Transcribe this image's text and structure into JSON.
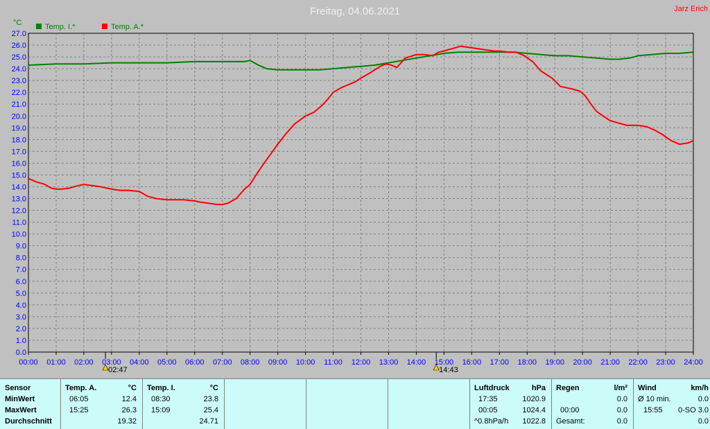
{
  "header": {
    "title": "Freitag, 04.06.2021",
    "author": "Jarz Erich"
  },
  "chart_data": {
    "type": "line",
    "ylabel": "°C",
    "ylim": [
      0.0,
      27.0
    ],
    "y_ticks": [
      "0.0",
      "1.0",
      "2.0",
      "3.0",
      "4.0",
      "5.0",
      "6.0",
      "7.0",
      "8.0",
      "9.0",
      "10.0",
      "11.0",
      "12.0",
      "13.0",
      "14.0",
      "15.0",
      "16.0",
      "17.0",
      "18.0",
      "19.0",
      "20.0",
      "21.0",
      "22.0",
      "23.0",
      "24.0",
      "25.0",
      "26.0",
      "27.0"
    ],
    "x_ticks": [
      "00:00",
      "01:00",
      "02:00",
      "03:00",
      "04:00",
      "05:00",
      "06:00",
      "07:00",
      "08:00",
      "09:00",
      "10:00",
      "11:00",
      "12:00",
      "13:00",
      "14:00",
      "15:00",
      "16:00",
      "17:00",
      "18:00",
      "19:00",
      "20:00",
      "21:00",
      "22:00",
      "23:00",
      "24:00"
    ],
    "xlim_hours": [
      0,
      24
    ],
    "grid": true,
    "legend_position": "top-left",
    "events": [
      {
        "hour": 2.78,
        "label": "02:47"
      },
      {
        "hour": 14.72,
        "label": "14:43"
      }
    ],
    "series": [
      {
        "name": "Temp. I.*",
        "color": "#008000",
        "x": [
          0,
          1,
          2,
          3,
          4,
          5,
          6,
          7,
          7.8,
          8.0,
          8.3,
          8.6,
          9,
          9.5,
          10,
          10.5,
          11,
          11.5,
          12,
          12.5,
          13,
          13.5,
          14,
          14.5,
          15,
          15.5,
          16,
          16.5,
          17,
          17.5,
          18,
          18.5,
          19,
          19.5,
          20,
          20.5,
          21,
          21.3,
          21.7,
          22,
          22.5,
          23,
          23.5,
          24
        ],
        "y": [
          24.3,
          24.4,
          24.4,
          24.5,
          24.5,
          24.5,
          24.6,
          24.6,
          24.6,
          24.7,
          24.3,
          24.0,
          23.9,
          23.9,
          23.9,
          23.9,
          24.0,
          24.1,
          24.2,
          24.3,
          24.5,
          24.7,
          24.9,
          25.1,
          25.3,
          25.4,
          25.4,
          25.4,
          25.4,
          25.4,
          25.3,
          25.2,
          25.1,
          25.1,
          25.0,
          24.9,
          24.8,
          24.8,
          24.9,
          25.1,
          25.2,
          25.3,
          25.3,
          25.4
        ]
      },
      {
        "name": "Temp. A.*",
        "color": "#ff0000",
        "x": [
          0,
          0.3,
          0.6,
          0.8,
          1.0,
          1.2,
          1.5,
          1.8,
          2.0,
          2.3,
          2.6,
          2.8,
          3.0,
          3.3,
          3.6,
          4.0,
          4.3,
          4.6,
          5.0,
          5.3,
          5.6,
          6.0,
          6.2,
          6.5,
          6.8,
          7.0,
          7.2,
          7.5,
          7.8,
          8.0,
          8.3,
          8.6,
          9.0,
          9.3,
          9.6,
          10.0,
          10.3,
          10.6,
          10.8,
          11.0,
          11.3,
          11.5,
          11.8,
          12.0,
          12.3,
          12.5,
          12.7,
          12.9,
          13.1,
          13.3,
          13.6,
          14.0,
          14.3,
          14.6,
          14.8,
          15.0,
          15.3,
          15.6,
          15.9,
          16.2,
          16.5,
          16.8,
          17.0,
          17.3,
          17.6,
          17.9,
          18.2,
          18.5,
          18.9,
          19.2,
          19.6,
          19.9,
          20.1,
          20.3,
          20.5,
          20.8,
          21.0,
          21.3,
          21.6,
          22.0,
          22.3,
          22.6,
          22.9,
          23.2,
          23.5,
          23.8,
          24.0
        ],
        "y": [
          14.7,
          14.4,
          14.2,
          13.9,
          13.8,
          13.8,
          13.9,
          14.1,
          14.2,
          14.1,
          14.0,
          13.9,
          13.8,
          13.7,
          13.7,
          13.6,
          13.2,
          13.0,
          12.9,
          12.9,
          12.9,
          12.8,
          12.7,
          12.6,
          12.5,
          12.5,
          12.6,
          13.0,
          13.8,
          14.2,
          15.3,
          16.3,
          17.6,
          18.5,
          19.3,
          20.0,
          20.3,
          20.9,
          21.4,
          22.0,
          22.4,
          22.6,
          22.9,
          23.2,
          23.6,
          23.9,
          24.2,
          24.4,
          24.3,
          24.1,
          24.9,
          25.2,
          25.2,
          25.1,
          25.4,
          25.5,
          25.7,
          25.9,
          25.8,
          25.7,
          25.6,
          25.5,
          25.5,
          25.4,
          25.4,
          25.1,
          24.6,
          23.8,
          23.2,
          22.5,
          22.3,
          22.1,
          21.7,
          21.0,
          20.4,
          19.9,
          19.6,
          19.4,
          19.2,
          19.2,
          19.1,
          18.8,
          18.4,
          17.9,
          17.6,
          17.7,
          17.9
        ]
      }
    ]
  },
  "table": {
    "row_labels": [
      "Sensor",
      "MinWert",
      "MaxWert",
      "Durchschnitt"
    ],
    "temp_a": {
      "header": "Temp. A.",
      "unit": "°C",
      "min_time": "06:05",
      "min": "12.4",
      "max_time": "15:25",
      "max": "26.3",
      "avg": "19.32"
    },
    "temp_i": {
      "header": "Temp. I.",
      "unit": "°C",
      "min_time": "08:30",
      "min": "23.8",
      "max_time": "15:09",
      "max": "25.4",
      "avg": "24.71"
    },
    "pressure": {
      "header": "Luftdruck",
      "unit": "hPa",
      "min_time": "17:35",
      "min": "1020.9",
      "max_time": "00:05",
      "max": "1024.4",
      "trend_label": "^0.8hPa/h",
      "current": "1022.8"
    },
    "rain": {
      "header": "Regen",
      "unit": "l/m²",
      "r1": "0.0",
      "r2_time": "00:00",
      "r2": "0.0",
      "total_label": "Gesamt:",
      "total": "0.0"
    },
    "wind": {
      "header": "Wind",
      "unit": "km/h",
      "avg_label": "Ø 10 min.",
      "avg": "0.0",
      "max_time": "15:55",
      "dir_max": "0-SO 3.0",
      "r3": "0.0"
    }
  }
}
